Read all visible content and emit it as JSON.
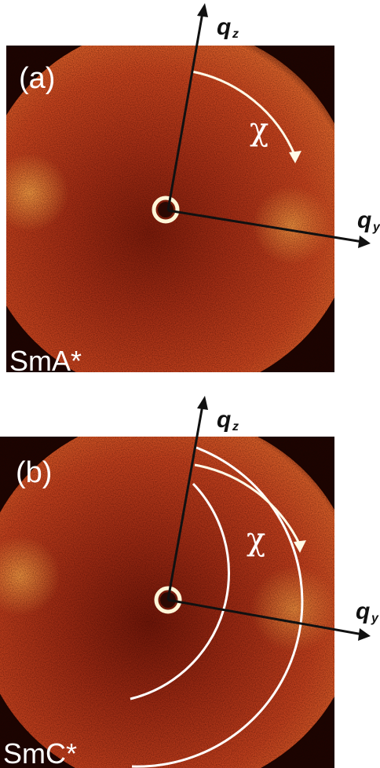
{
  "panels": [
    {
      "panel_label": "(a)",
      "phase_label": "SmA*",
      "axis_z_label": "q",
      "axis_z_sub": "z",
      "axis_y_label": "q",
      "axis_y_sub": "y",
      "angle_label": "χ"
    },
    {
      "panel_label": "(b)",
      "phase_label": "SmC*",
      "axis_z_label": "q",
      "axis_z_sub": "z",
      "axis_y_label": "q",
      "axis_y_sub": "y",
      "angle_label": "χ"
    }
  ],
  "colors": {
    "background": "#ffffff",
    "detector_base": "#b8351a",
    "detector_dark": "#5a1408",
    "detector_bright": "#f08a3a",
    "ring": "#fff6d8",
    "axis": "#111111",
    "arc": "#fffbe8"
  }
}
